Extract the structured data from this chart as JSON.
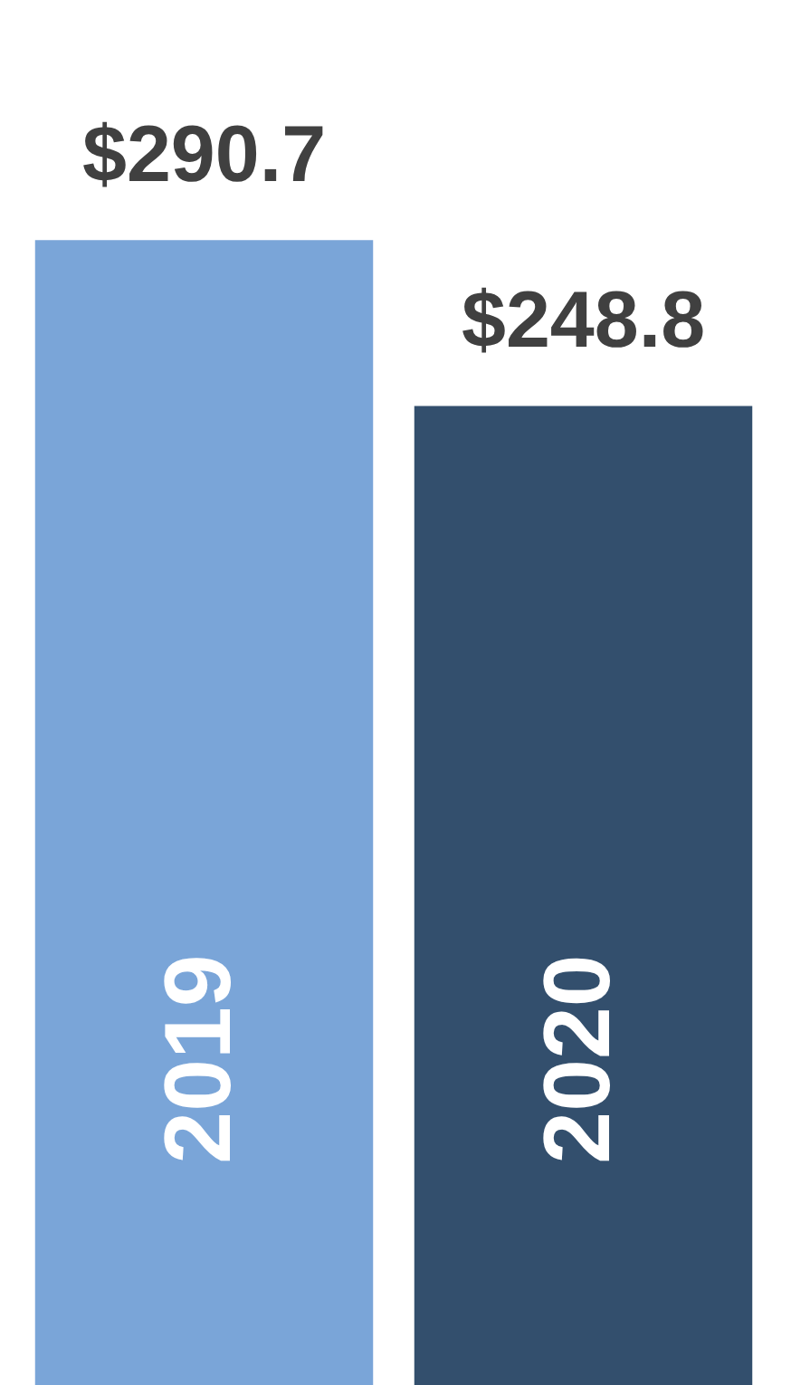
{
  "chart_data": {
    "type": "bar",
    "categories": [
      "2019",
      "2020"
    ],
    "values": [
      290.7,
      248.8
    ],
    "colors": [
      "#7aa5d8",
      "#334f6d"
    ],
    "value_labels": [
      "$290.7",
      "$248.8"
    ]
  }
}
